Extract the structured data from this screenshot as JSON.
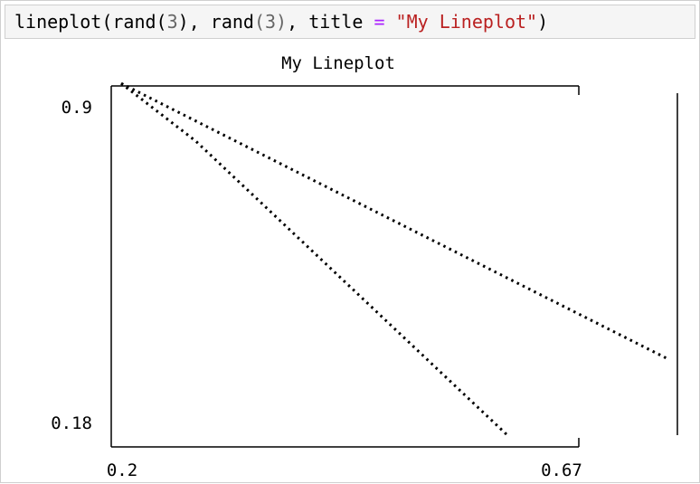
{
  "cell": {
    "fn": "lineplot",
    "paren_open": "(",
    "rand_a": "rand",
    "arg_open_a": "(",
    "arg_a": "3",
    "arg_close_a": ")",
    "comma_a": ", ",
    "rand_b": "rand",
    "arg_open_b": "(",
    "arg_b": "3",
    "arg_close_b": ")",
    "comma_b": ", ",
    "kw": "title",
    "eq": " = ",
    "title_str": "\"My Lineplot\"",
    "paren_close": ")"
  },
  "chart_data": {
    "type": "line",
    "title": "My Lineplot",
    "xlabel": "",
    "ylabel": "",
    "xlim": [
      0.2,
      0.67
    ],
    "ylim": [
      0.18,
      0.9
    ],
    "x_tick_labels": [
      "0.2",
      "0.67"
    ],
    "y_tick_labels": [
      "0.9",
      "0.18"
    ],
    "grid": false,
    "series": [
      {
        "x": [
          0.21,
          0.285,
          0.6
        ],
        "y": [
          0.905,
          0.79,
          0.2
        ]
      },
      {
        "x": [
          0.21,
          0.76
        ],
        "y": [
          0.905,
          0.355
        ]
      }
    ]
  }
}
